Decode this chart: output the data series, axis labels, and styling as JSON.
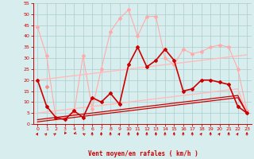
{
  "x": [
    0,
    1,
    2,
    3,
    4,
    5,
    6,
    7,
    8,
    9,
    10,
    11,
    12,
    13,
    14,
    15,
    16,
    17,
    18,
    19,
    20,
    21,
    22,
    23
  ],
  "series": [
    {
      "name": "rafales_light",
      "color": "#ffaaaa",
      "linewidth": 0.8,
      "marker": "D",
      "markersize": 2,
      "values": [
        44,
        31,
        3,
        3,
        5,
        31,
        7,
        25,
        42,
        48,
        52,
        40,
        49,
        49,
        30,
        27,
        34,
        32,
        33,
        35,
        36,
        35,
        25,
        6
      ]
    },
    {
      "name": "rafales_med",
      "color": "#ff8888",
      "linewidth": 0.8,
      "marker": "D",
      "markersize": 2,
      "values": [
        null,
        17,
        null,
        null,
        null,
        null,
        null,
        null,
        null,
        null,
        null,
        null,
        null,
        null,
        null,
        null,
        null,
        null,
        null,
        null,
        null,
        null,
        null,
        null
      ]
    },
    {
      "name": "trend_upper_light",
      "color": "#ffbbbb",
      "linewidth": 1.0,
      "marker": null,
      "markersize": 0,
      "values": [
        20,
        20.5,
        21,
        21.5,
        22,
        22.5,
        23,
        23.5,
        24,
        24.5,
        25,
        25.5,
        26,
        26.5,
        27,
        27.5,
        28,
        28.5,
        29,
        29.5,
        30,
        30.5,
        31,
        31.5
      ]
    },
    {
      "name": "trend_lower_light",
      "color": "#ffbbbb",
      "linewidth": 1.0,
      "marker": null,
      "markersize": 0,
      "values": [
        5,
        5.5,
        6,
        6.5,
        7,
        7.5,
        8,
        8.5,
        9,
        9.5,
        10,
        10.5,
        11,
        11.5,
        12,
        12.5,
        13,
        13.5,
        14,
        14.5,
        15,
        15.5,
        16,
        5
      ]
    },
    {
      "name": "moyen_dark",
      "color": "#cc0000",
      "linewidth": 1.2,
      "marker": "D",
      "markersize": 2,
      "values": [
        20,
        8,
        3,
        2,
        6,
        3,
        12,
        10,
        14,
        9,
        27,
        35,
        26,
        29,
        34,
        29,
        15,
        16,
        20,
        20,
        19,
        18,
        8,
        5
      ]
    },
    {
      "name": "trend_dark1",
      "color": "#cc0000",
      "linewidth": 0.9,
      "marker": null,
      "markersize": 0,
      "values": [
        2,
        2.5,
        3,
        3.5,
        4,
        4.5,
        5,
        5.5,
        6,
        6.5,
        7,
        7.5,
        8,
        8.5,
        9,
        9.5,
        10,
        10.5,
        11,
        11.5,
        12,
        12.5,
        13,
        5
      ]
    },
    {
      "name": "trend_dark2",
      "color": "#cc0000",
      "linewidth": 0.9,
      "marker": null,
      "markersize": 0,
      "values": [
        1,
        1.5,
        2,
        2.5,
        3,
        3.5,
        4,
        4.5,
        5,
        5.5,
        6,
        6.5,
        7,
        7.5,
        8,
        8.5,
        9,
        9.5,
        10,
        10.5,
        11,
        11.5,
        12,
        5
      ]
    }
  ],
  "arrow_angles": [
    45,
    60,
    70,
    -135,
    -100,
    -70,
    0,
    0,
    0,
    45,
    0,
    0,
    0,
    0,
    0,
    0,
    0,
    0,
    45,
    0,
    45,
    0,
    45,
    0
  ],
  "xlabel": "Vent moyen/en rafales ( km/h )",
  "xlim": [
    -0.5,
    23.5
  ],
  "ylim": [
    0,
    55
  ],
  "yticks": [
    0,
    5,
    10,
    15,
    20,
    25,
    30,
    35,
    40,
    45,
    50,
    55
  ],
  "xticks": [
    0,
    1,
    2,
    3,
    4,
    5,
    6,
    7,
    8,
    9,
    10,
    11,
    12,
    13,
    14,
    15,
    16,
    17,
    18,
    19,
    20,
    21,
    22,
    23
  ],
  "bg_color": "#d8eeee",
  "grid_color": "#aacece",
  "axis_color": "#cc0000",
  "label_color": "#cc0000"
}
